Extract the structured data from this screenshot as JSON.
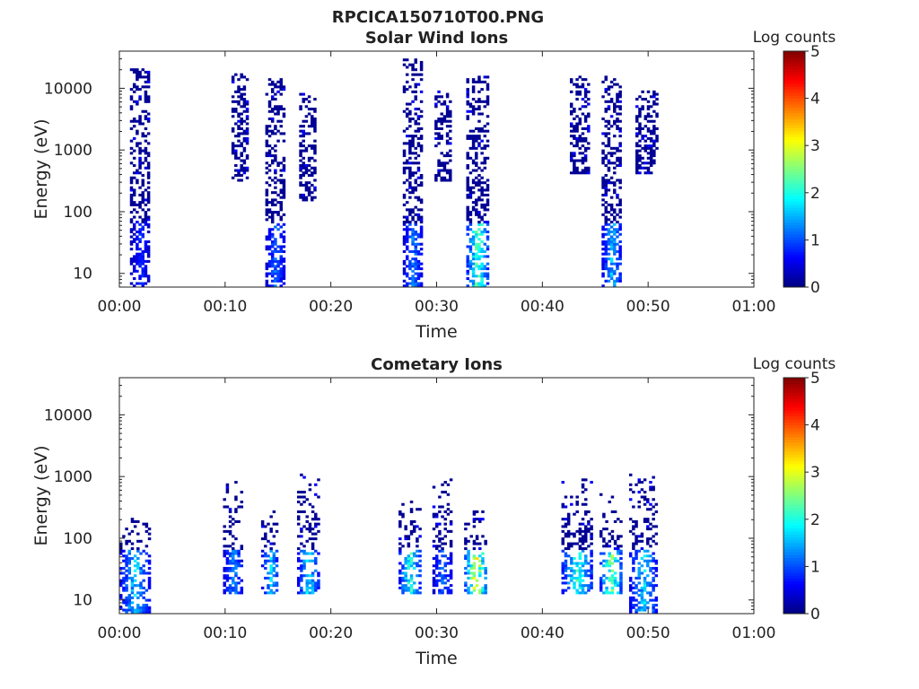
{
  "figure": {
    "title": "RPCICA150710T00.PNG"
  },
  "chart_data": [
    {
      "type": "heatmap",
      "title": "Solar Wind Ions",
      "xlabel": "Time",
      "ylabel": "Energy (eV)",
      "x_ticks": [
        "00:00",
        "00:10",
        "00:20",
        "00:30",
        "00:40",
        "00:50",
        "01:00"
      ],
      "x_range_min": [
        0,
        60
      ],
      "y_ticks": [
        "10",
        "100",
        "1000",
        "10000"
      ],
      "y_scale": "log",
      "ylim": [
        6,
        40000
      ],
      "colorbar": {
        "label": "Log counts",
        "ticks": [
          "0",
          "1",
          "2",
          "3",
          "4",
          "5"
        ],
        "range": [
          0,
          5
        ],
        "colormap": "jet"
      },
      "bursts": [
        {
          "t": [
            1.0,
            2.8
          ],
          "e": [
            6,
            20000
          ],
          "peak": 1.0
        },
        {
          "t": [
            10.6,
            12.2
          ],
          "e": [
            300,
            17000
          ],
          "peak": 0.4
        },
        {
          "t": [
            13.8,
            15.6
          ],
          "e": [
            6,
            14000
          ],
          "peak": 1.4
        },
        {
          "t": [
            17.0,
            18.6
          ],
          "e": [
            150,
            9000
          ],
          "peak": 0.4
        },
        {
          "t": [
            26.8,
            28.6
          ],
          "e": [
            6,
            30000
          ],
          "peak": 1.5
        },
        {
          "t": [
            29.8,
            31.4
          ],
          "e": [
            300,
            9000
          ],
          "peak": 0.4
        },
        {
          "t": [
            32.8,
            34.8
          ],
          "e": [
            6,
            15000
          ],
          "peak": 2.8
        },
        {
          "t": [
            42.6,
            44.4
          ],
          "e": [
            400,
            15000
          ],
          "peak": 0.4
        },
        {
          "t": [
            45.6,
            47.4
          ],
          "e": [
            6,
            15000
          ],
          "peak": 1.9
        },
        {
          "t": [
            48.8,
            50.8
          ],
          "e": [
            400,
            9000
          ],
          "peak": 0.4
        }
      ]
    },
    {
      "type": "heatmap",
      "title": "Cometary Ions",
      "xlabel": "Time",
      "ylabel": "Energy (eV)",
      "x_ticks": [
        "00:00",
        "00:10",
        "00:20",
        "00:30",
        "00:40",
        "00:50",
        "01:00"
      ],
      "x_range_min": [
        0,
        60
      ],
      "y_ticks": [
        "10",
        "100",
        "1000",
        "10000"
      ],
      "y_scale": "log",
      "ylim": [
        6,
        40000
      ],
      "colorbar": {
        "label": "Log counts",
        "ticks": [
          "0",
          "1",
          "2",
          "3",
          "4",
          "5"
        ],
        "range": [
          0,
          5
        ],
        "colormap": "jet"
      },
      "bursts": [
        {
          "t": [
            0.0,
            2.8
          ],
          "e": [
            6,
            200
          ],
          "peak": 2.0
        },
        {
          "t": [
            9.8,
            11.6
          ],
          "e": [
            12,
            800
          ],
          "peak": 1.6
        },
        {
          "t": [
            13.4,
            15.0
          ],
          "e": [
            12,
            400
          ],
          "peak": 2.0
        },
        {
          "t": [
            16.8,
            18.8
          ],
          "e": [
            12,
            1100
          ],
          "peak": 2.2
        },
        {
          "t": [
            26.4,
            28.4
          ],
          "e": [
            12,
            400
          ],
          "peak": 2.5
        },
        {
          "t": [
            29.6,
            31.4
          ],
          "e": [
            12,
            900
          ],
          "peak": 1.4
        },
        {
          "t": [
            32.6,
            34.6
          ],
          "e": [
            12,
            300
          ],
          "peak": 3.6
        },
        {
          "t": [
            41.8,
            44.6
          ],
          "e": [
            12,
            900
          ],
          "peak": 2.5
        },
        {
          "t": [
            45.4,
            47.4
          ],
          "e": [
            12,
            500
          ],
          "peak": 3.0
        },
        {
          "t": [
            48.2,
            50.8
          ],
          "e": [
            6,
            1200
          ],
          "peak": 2.0
        }
      ]
    }
  ]
}
